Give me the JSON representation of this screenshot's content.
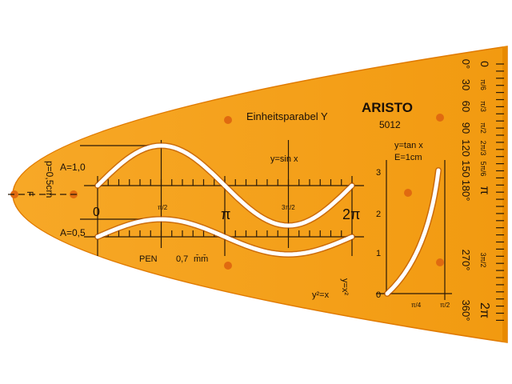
{
  "template": {
    "brand": "ARISTO",
    "model": "5012",
    "title": "Einheitsparabel Y",
    "color": "#f5a21e",
    "focus_label": "F",
    "parameter_label": "p=0,5cm",
    "sine": {
      "label": "y=sin x",
      "amplitude_labels": [
        "A=1,0",
        "A=0,5"
      ],
      "x_labels": [
        "0",
        "π/2",
        "π",
        "3π/2",
        "2π"
      ]
    },
    "pen_label": "PEN",
    "pen_size": "0,7",
    "pen_unit": "m̄m̄",
    "tan": {
      "label": "y=tan x",
      "scale_label": "E=1cm",
      "y_labels": [
        "0",
        "1",
        "2",
        "3"
      ],
      "x_labels": [
        "π/4",
        "π/2"
      ]
    },
    "bottom_labels": [
      "y²=x",
      "y=x²"
    ],
    "angle_scale": {
      "degrees": [
        "0°",
        "30",
        "60",
        "90",
        "120",
        "150",
        "180°",
        "270°",
        "360°"
      ],
      "radians": [
        "0",
        "π/6",
        "π/3",
        "π/2",
        "2π/3",
        "5π/6",
        "π",
        "3π/2",
        "2π"
      ]
    }
  }
}
